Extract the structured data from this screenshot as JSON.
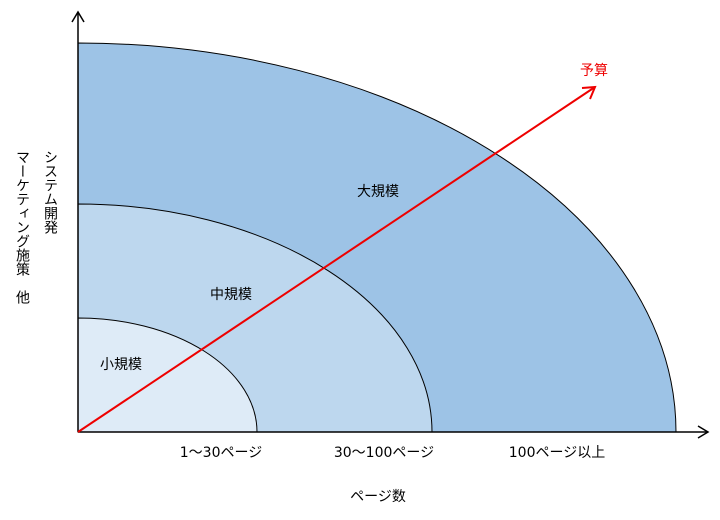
{
  "y_axis_label": [
    "システム開発",
    "マーケティング施策　他"
  ],
  "x_axis_title": "ページ数",
  "regions": [
    {
      "label": "小規模",
      "range": "1～30ページ"
    },
    {
      "label": "中規模",
      "range": "30～100ページ"
    },
    {
      "label": "大規模",
      "range": "100ページ以上"
    }
  ],
  "arrow_label": "予算"
}
